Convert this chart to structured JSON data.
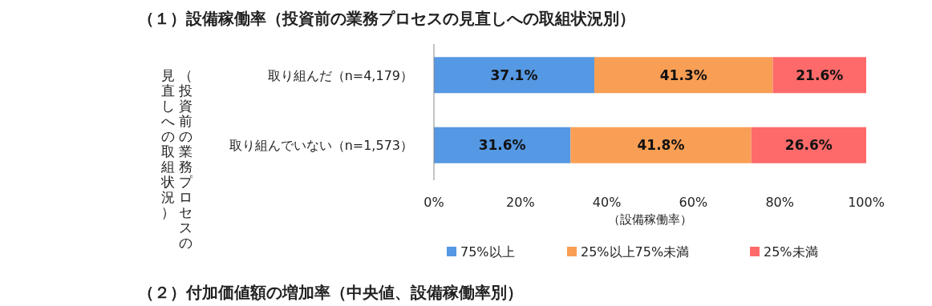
{
  "chart_data": {
    "type": "bar",
    "orientation": "horizontal",
    "stacked": true,
    "title": "（１）設備稼働率（投資前の業務プロセスの見直しへの取組状況別）",
    "ylabel": "（投資前の業務プロセスの見直しへの取組状況）",
    "xlabel": "（設備稼働率）",
    "categories": [
      "取り組んだ（n=4,179）",
      "取り組んでいない（n=1,573）"
    ],
    "series": [
      {
        "name": "75%以上",
        "color": "#5598e3",
        "values": [
          37.1,
          31.6
        ],
        "value_labels": [
          "37.1%",
          "31.6%"
        ]
      },
      {
        "name": "25%以上75%未満",
        "color": "#f99f55",
        "values": [
          41.3,
          41.8
        ],
        "value_labels": [
          "41.3%",
          "41.8%"
        ]
      },
      {
        "name": "25%未満",
        "color": "#fe6a6a",
        "values": [
          21.6,
          26.6
        ],
        "value_labels": [
          "21.6%",
          "26.6%"
        ]
      }
    ],
    "xlim": [
      0,
      100
    ],
    "xticks": [
      {
        "value": 0,
        "label": "0%"
      },
      {
        "value": 20,
        "label": "20%"
      },
      {
        "value": 40,
        "label": "40%"
      },
      {
        "value": 60,
        "label": "60%"
      },
      {
        "value": 80,
        "label": "80%"
      },
      {
        "value": 100,
        "label": "100%"
      }
    ],
    "legend": "bottom",
    "annotations": [
      "（２）付加価値額の増加率（中央値、設備稼働率別）"
    ]
  }
}
